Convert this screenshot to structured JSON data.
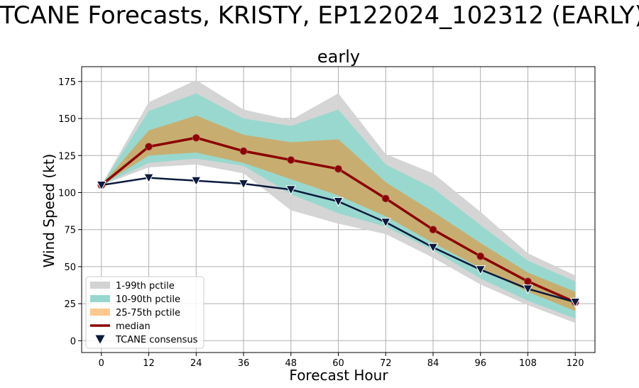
{
  "suptitle": "TCANE Forecasts, KRISTY, EP122024_102312 (EARLY)",
  "chart_data": {
    "type": "line",
    "title": "early",
    "xlabel": "Forecast Hour",
    "ylabel": "Wind Speed (kt)",
    "xlim": [
      -5,
      125
    ],
    "ylim": [
      -8,
      185
    ],
    "x": [
      0,
      12,
      24,
      36,
      48,
      60,
      72,
      84,
      96,
      108,
      120
    ],
    "xticks": [
      0,
      12,
      24,
      36,
      48,
      60,
      72,
      84,
      96,
      108,
      120
    ],
    "yticks": [
      0,
      25,
      50,
      75,
      100,
      125,
      150,
      175
    ],
    "grid": true,
    "legend_position": "lower-left",
    "bands": [
      {
        "name": "1-99th pctile",
        "color": "#d3d3d3",
        "lower": [
          105,
          117,
          119,
          113,
          88,
          79,
          72,
          56,
          38,
          24,
          12
        ],
        "upper": [
          105,
          161,
          176,
          156,
          149,
          167,
          126,
          113,
          87,
          59,
          44
        ]
      },
      {
        "name": "10-90th pctile",
        "color": "#96d8cf",
        "lower": [
          105,
          120,
          123,
          118,
          99,
          86,
          77,
          61,
          42,
          27,
          15
        ],
        "upper": [
          105,
          155,
          167,
          150,
          145,
          156,
          119,
          103,
          78,
          54,
          40
        ]
      },
      {
        "name": "25-75th pctile",
        "color": "#c9ac6a",
        "lower": [
          105,
          125,
          127,
          120,
          109,
          98,
          84,
          66,
          49,
          33,
          20
        ],
        "upper": [
          105,
          142,
          152,
          139,
          134,
          136,
          107,
          87,
          66,
          46,
          33
        ]
      }
    ],
    "legend_colors": [
      "#d3d3d3",
      "#96d8cf",
      "#ffc88c"
    ],
    "series": [
      {
        "name": "median",
        "color": "#8b0000",
        "marker": "circle",
        "values": [
          105,
          131,
          137,
          128,
          122,
          116,
          96,
          75,
          57,
          40,
          26
        ]
      },
      {
        "name": "TCANE consensus",
        "color": "#0b1a3d",
        "marker": "triangle-down",
        "values": [
          105,
          110,
          108,
          106,
          102,
          94,
          80,
          63,
          48,
          35,
          26
        ]
      }
    ]
  }
}
